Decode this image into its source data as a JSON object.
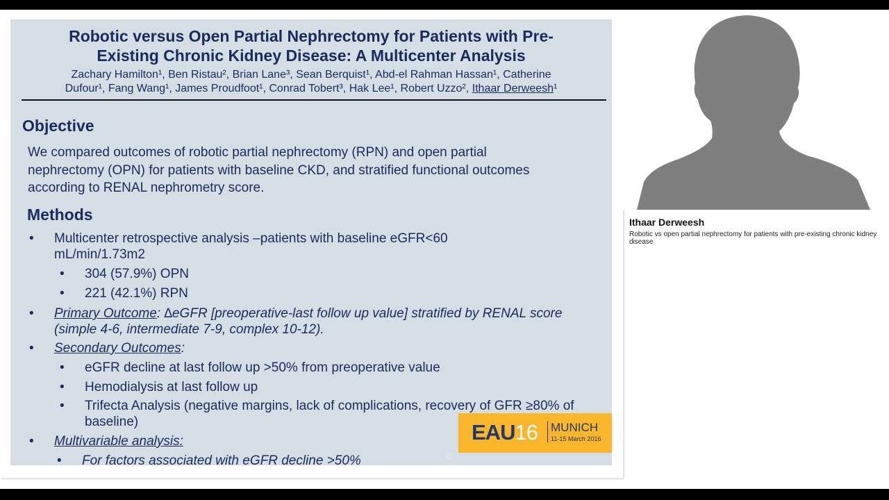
{
  "slide": {
    "title_line1": "Robotic versus Open Partial Nephrectomy for Patients with Pre-",
    "title_line2": "Existing Chronic Kidney Disease:  A Multicenter Analysis",
    "authors_line1": "Zachary Hamilton¹, Ben Ristau², Brian Lane³, Sean Berquist¹, Abd-el Rahman Hassan¹, Catherine",
    "authors_line2": "Dufour¹, Fang Wang¹, James Proudfoot¹, Conrad Tobert³, Hak Lee¹, Robert Uzzo², ",
    "presenter": "Ithaar Derweesh",
    "presenter_sup": "¹",
    "objective_heading": "Objective",
    "objective_lines": [
      "We compared outcomes of robotic partial nephrectomy (RPN) and open partial",
      "nephrectomy (OPN) for patients with baseline CKD, and stratified functional outcomes",
      "according to RENAL nephrometry score."
    ],
    "methods_heading": "Methods",
    "bullet": "•",
    "m1": "Multicenter retrospective analysis –patients with baseline eGFR<60 mL/min/1.73m2",
    "m1a": "304 (57.9%) OPN",
    "m1b": "221 (42.1%) RPN",
    "m2_label": "Primary Outcome",
    "m2_text": ": ∆eGFR [preoperative-last follow up value] stratified by RENAL score (simple 4-6, intermediate 7-9, complex 10-12).",
    "m3_label": "Secondary Outcomes",
    "m3_text": ":",
    "m3a": "eGFR decline at last follow up >50% from preoperative value",
    "m3b": "Hemodialysis at last follow up",
    "m3c": "Trifecta Analysis (negative margins, lack of complications, recovery of GFR ≥80% of baseline)",
    "m4_label": "Multivariable analysis:",
    "m4a": "For factors associated with eGFR decline >50%",
    "copyright": "©",
    "logo": {
      "eau": "EAU",
      "num": "16",
      "city": "MUNICH",
      "dates": "11-15 March 2016"
    }
  },
  "speaker": {
    "name": "Ithaar Derweesh",
    "talk": "Robotic vs open partial nephrectomy for patients with pre-existing chronic kidney disease"
  }
}
